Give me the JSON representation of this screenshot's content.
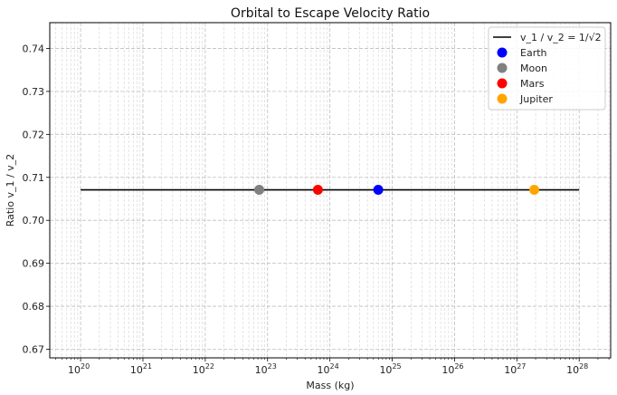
{
  "chart_data": {
    "type": "scatter",
    "title": "Orbital to Escape Velocity Ratio",
    "xlabel": "Mass (kg)",
    "ylabel": "Ratio v_1 / v_2",
    "xscale": "log",
    "xlim": [
      3.2e+19,
      3.2e+28
    ],
    "ylim": [
      0.668,
      0.746
    ],
    "x_tick_exponents": [
      20,
      21,
      22,
      23,
      24,
      25,
      26,
      27,
      28
    ],
    "x_tick_base": "10",
    "y_ticks": [
      0.67,
      0.68,
      0.69,
      0.7,
      0.71,
      0.72,
      0.73,
      0.74
    ],
    "y_tick_labels": [
      "0.67",
      "0.68",
      "0.69",
      "0.70",
      "0.71",
      "0.72",
      "0.73",
      "0.74"
    ],
    "grid": true,
    "legend_position": "top-right",
    "line": {
      "name": "v_1 / v_2 = 1/√2",
      "x": [
        1e+20,
        1e+28
      ],
      "y": [
        0.7071,
        0.7071
      ],
      "color": "#000000"
    },
    "series": [
      {
        "name": "Earth",
        "x": 5.97e+24,
        "y": 0.7071,
        "color": "#0000ff"
      },
      {
        "name": "Moon",
        "x": 7.35e+22,
        "y": 0.7071,
        "color": "#808080"
      },
      {
        "name": "Mars",
        "x": 6.42e+23,
        "y": 0.7071,
        "color": "#ff0000"
      },
      {
        "name": "Jupiter",
        "x": 1.9e+27,
        "y": 0.7071,
        "color": "#ffa500"
      }
    ]
  }
}
